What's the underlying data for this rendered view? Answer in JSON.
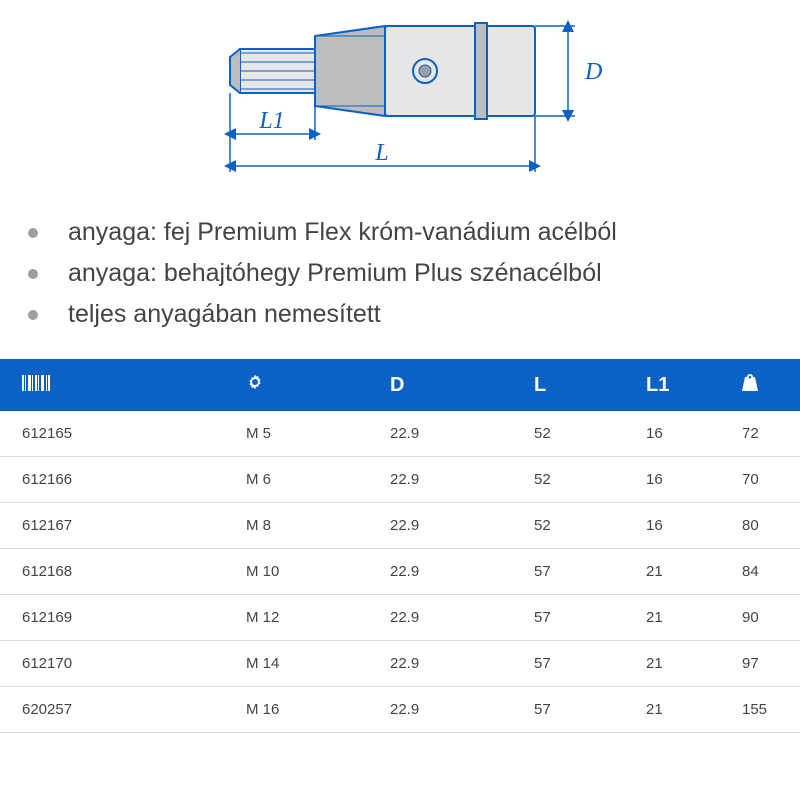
{
  "diagram": {
    "stroke": "#0b62c4",
    "fill_light": "#e6e6e6",
    "fill_mid": "#bdbdbd",
    "fill_dark": "#9e9e9e",
    "label_L": "L",
    "label_L1": "L1",
    "label_D": "D",
    "label_font": "italic 24px serif"
  },
  "bullets": [
    "anyaga: fej Premium Flex króm-vanádium acélból",
    "anyaga: behajtóhegy Premium Plus szénacélból",
    "teljes anyagában nemesített"
  ],
  "table": {
    "header_bg": "#0b62c4",
    "header_fg": "#ffffff",
    "columns": [
      {
        "icon": "barcode",
        "label": ""
      },
      {
        "icon": "gear",
        "label": ""
      },
      {
        "icon": null,
        "label": "D"
      },
      {
        "icon": null,
        "label": "L"
      },
      {
        "icon": null,
        "label": "L1"
      },
      {
        "icon": "weight",
        "label": ""
      }
    ],
    "rows": [
      [
        "612165",
        "M 5",
        "22.9",
        "52",
        "16",
        "72"
      ],
      [
        "612166",
        "M 6",
        "22.9",
        "52",
        "16",
        "70"
      ],
      [
        "612167",
        "M 8",
        "22.9",
        "52",
        "16",
        "80"
      ],
      [
        "612168",
        "M 10",
        "22.9",
        "57",
        "21",
        "84"
      ],
      [
        "612169",
        "M 12",
        "22.9",
        "57",
        "21",
        "90"
      ],
      [
        "612170",
        "M 14",
        "22.9",
        "57",
        "21",
        "97"
      ],
      [
        "620257",
        "M 16",
        "22.9",
        "57",
        "21",
        "155"
      ]
    ]
  }
}
